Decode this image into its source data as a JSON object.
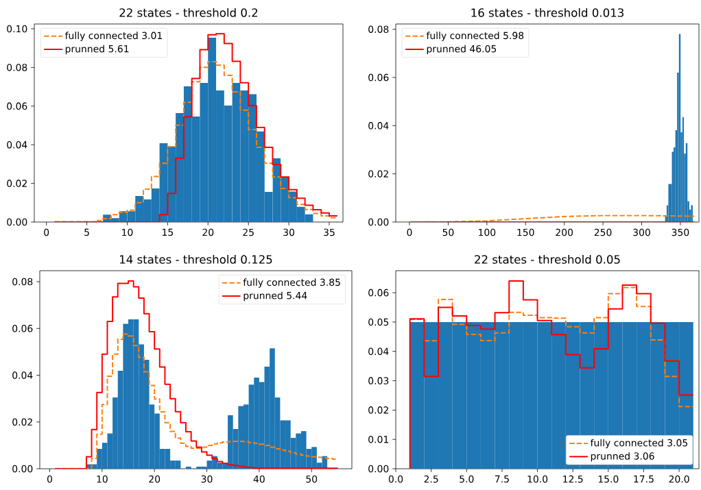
{
  "chart_data": [
    {
      "type": "histogram",
      "title": "22 states - threshold 0.2",
      "legend": "top left",
      "xlim": [
        -1.5,
        36.7
      ],
      "ylim": [
        0,
        0.1025
      ],
      "xticks": [
        0,
        5,
        10,
        15,
        20,
        25,
        30,
        35
      ],
      "yticks": [
        {
          "value": 0,
          "label": "0.00"
        },
        {
          "value": 0.02,
          "label": "0.02"
        },
        {
          "value": 0.04,
          "label": "0.04"
        },
        {
          "value": 0.06,
          "label": "0.06"
        },
        {
          "value": 0.08,
          "label": "0.08"
        },
        {
          "value": 0.1,
          "label": "0.10"
        }
      ],
      "series": [
        {
          "color": "#1f77b4",
          "bins": [
            7,
            8,
            9,
            10,
            11,
            12,
            13,
            14,
            15,
            16,
            17,
            18,
            19,
            20,
            21,
            22,
            23,
            24,
            25,
            26,
            27,
            28,
            29,
            30,
            31,
            32,
            33
          ],
          "values": [
            0.0038,
            0.002,
            0.0056,
            0.0056,
            0.0135,
            0.0117,
            0.0174,
            0.0408,
            0.0392,
            0.0564,
            0.0702,
            0.0546,
            0.072,
            0.0954,
            0.0681,
            0.0603,
            0.072,
            0.0681,
            0.0662,
            0.0469,
            0.0156,
            0.033,
            0.0233,
            0.0158,
            0.0079,
            0.004
          ]
        },
        {
          "type": "step",
          "name": "fully connected 3.01",
          "color": "#ff7f0e",
          "line_style": "dashed",
          "x": [
            1,
            6,
            7,
            8,
            9,
            10,
            11,
            12,
            13,
            14,
            15,
            16,
            17,
            18,
            19,
            20,
            21,
            22,
            23,
            24,
            25,
            26,
            27,
            28,
            29,
            30,
            31,
            32,
            33,
            34,
            35,
            36
          ],
          "values": [
            0.0002,
            0.0008,
            0.0018,
            0.0038,
            0.005,
            0.0061,
            0.01,
            0.017,
            0.0236,
            0.0304,
            0.039,
            0.0501,
            0.062,
            0.0726,
            0.0801,
            0.083,
            0.0812,
            0.0759,
            0.0674,
            0.0579,
            0.0479,
            0.0387,
            0.0304,
            0.0233,
            0.0174,
            0.0126,
            0.0091,
            0.0065,
            0.0044,
            0.0032,
            0.0022,
            0.0022
          ]
        },
        {
          "type": "step",
          "name": "prunned 5.61",
          "color": "#ff0000",
          "line_style": "solid",
          "x": [
            1,
            14,
            15,
            16,
            17,
            18,
            19,
            20,
            21,
            22,
            23,
            24,
            25,
            26,
            27,
            28,
            29,
            30,
            31,
            32,
            33,
            34,
            35,
            36
          ],
          "values": [
            0,
            0.0038,
            0.0148,
            0.0331,
            0.0544,
            0.0743,
            0.0892,
            0.0969,
            0.0974,
            0.0924,
            0.0832,
            0.0721,
            0.0602,
            0.0489,
            0.0387,
            0.0298,
            0.0233,
            0.0168,
            0.0123,
            0.0087,
            0.0064,
            0.0047,
            0.0032,
            0.0032
          ]
        }
      ]
    },
    {
      "type": "histogram",
      "title": "16 states - threshold 0.013",
      "legend": "top left",
      "xlim": [
        -17.7,
        374
      ],
      "ylim": [
        0,
        0.0822
      ],
      "xticks": [
        0,
        50,
        100,
        150,
        200,
        250,
        300,
        350
      ],
      "yticks": [
        {
          "value": 0,
          "label": "0.00"
        },
        {
          "value": 0.02,
          "label": "0.02"
        },
        {
          "value": 0.04,
          "label": "0.04"
        },
        {
          "value": 0.06,
          "label": "0.06"
        },
        {
          "value": 0.08,
          "label": "0.08"
        }
      ],
      "series": [
        {
          "color": "#1f77b4",
          "bins": [
            330,
            332.25,
            334.5,
            336.75,
            339,
            341.25,
            343.5,
            345.75,
            348,
            350.25,
            352.5,
            354.75,
            357,
            359.25,
            361.5,
            363.75,
            366
          ],
          "values": [
            0.0026,
            0.007,
            0.0158,
            0.0158,
            0.0292,
            0.031,
            0.0381,
            0.062,
            0.0781,
            0.0373,
            0.0435,
            0.0284,
            0.0327,
            0.0087,
            0.0052,
            0.007
          ]
        },
        {
          "type": "line",
          "name": "fully connected 5.98",
          "color": "#ff7f0e",
          "line_style": "dashed",
          "x": [
            1,
            50,
            100,
            150,
            200,
            250,
            300,
            350,
            368
          ],
          "values": [
            0,
            0.0001,
            0.0005,
            0.0014,
            0.0023,
            0.0027,
            0.0027,
            0.0025,
            0.0024
          ]
        },
        {
          "type": "line",
          "name": "prunned 46.05",
          "color": "#ff0000",
          "line_style": "solid",
          "x": [
            1,
            368
          ],
          "values": [
            0,
            0
          ]
        }
      ]
    },
    {
      "type": "histogram",
      "title": "14 states - threshold 0.125",
      "legend": "top right",
      "xlim": [
        -1.9,
        57.7
      ],
      "ylim": [
        0,
        0.0847
      ],
      "xticks": [
        0,
        10,
        20,
        30,
        40,
        50
      ],
      "yticks": [
        {
          "value": 0,
          "label": "0.00"
        },
        {
          "value": 0.02,
          "label": "0.02"
        },
        {
          "value": 0.04,
          "label": "0.04"
        },
        {
          "value": 0.06,
          "label": "0.06"
        },
        {
          "value": 0.08,
          "label": "0.08"
        }
      ],
      "series": [
        {
          "color": "#1f77b4",
          "bins": [
            7,
            8,
            9,
            10,
            11,
            12,
            13,
            14,
            15,
            16,
            17,
            18,
            19,
            20,
            21,
            22,
            23,
            24,
            25,
            26,
            27,
            28,
            29,
            30,
            31,
            32,
            33,
            34,
            35,
            36,
            37,
            38,
            39,
            40,
            41,
            42,
            43,
            44,
            45,
            46,
            47,
            48,
            49,
            50,
            51,
            52,
            53
          ],
          "values": [
            0.0019,
            0.0019,
            0.0085,
            0.0111,
            0.0151,
            0.0305,
            0.0419,
            0.062,
            0.0639,
            0.0639,
            0.0532,
            0.0466,
            0.0275,
            0.0236,
            0.0085,
            0.0085,
            0.0035,
            0.0035,
            0,
            0.0009,
            0,
            0.0009,
            0.0009,
            0.0035,
            0.0054,
            0.0026,
            0.0026,
            0.0229,
            0.017,
            0.0268,
            0.0275,
            0.036,
            0.039,
            0.0371,
            0.0437,
            0.0515,
            0.0305,
            0.0207,
            0.0207,
            0.0132,
            0.0151,
            0.0161,
            0.0085,
            0.0093,
            0.0026,
            0.0054
          ]
        },
        {
          "type": "step",
          "name": "fully connected 3.85",
          "color": "#ff7f0e",
          "line_style": "dashed",
          "x": [
            1,
            8,
            9,
            10,
            11,
            12,
            13,
            14,
            15,
            16,
            17,
            18,
            19,
            20,
            21,
            22,
            23,
            24,
            25,
            26,
            27,
            28,
            29,
            30,
            31,
            32,
            33,
            34,
            35,
            36,
            37,
            38,
            39,
            40,
            41,
            42,
            43,
            44,
            45,
            46,
            47,
            48,
            49,
            50,
            51,
            52,
            53,
            54,
            55
          ],
          "values": [
            0.0001,
            0.0045,
            0.0148,
            0.0275,
            0.0396,
            0.049,
            0.0554,
            0.0576,
            0.0568,
            0.0527,
            0.0476,
            0.0415,
            0.0356,
            0.0298,
            0.0243,
            0.0197,
            0.016,
            0.0131,
            0.0109,
            0.0095,
            0.0088,
            0.0088,
            0.0092,
            0.01,
            0.0106,
            0.0111,
            0.0114,
            0.0116,
            0.0117,
            0.0117,
            0.0116,
            0.0112,
            0.0109,
            0.0105,
            0.01,
            0.0092,
            0.0085,
            0.008,
            0.0075,
            0.0068,
            0.0063,
            0.0058,
            0.0054,
            0.0051,
            0.0049,
            0.0046,
            0.0044,
            0.0041,
            0.0041
          ]
        },
        {
          "type": "step",
          "name": "prunned 5.44",
          "color": "#ff0000",
          "line_style": "solid",
          "x": [
            1,
            7,
            8,
            9,
            10,
            11,
            12,
            13,
            14,
            15,
            16,
            17,
            18,
            19,
            20,
            21,
            22,
            23,
            24,
            25,
            26,
            27,
            28,
            29,
            30,
            31,
            32,
            33,
            34,
            35,
            36,
            37,
            38,
            39,
            55
          ],
          "values": [
            0,
            0.0051,
            0.0168,
            0.0326,
            0.049,
            0.063,
            0.0735,
            0.0793,
            0.0793,
            0.0803,
            0.0778,
            0.073,
            0.0663,
            0.0586,
            0.0512,
            0.0435,
            0.0361,
            0.03,
            0.0244,
            0.0197,
            0.0158,
            0.0119,
            0.0092,
            0.0072,
            0.0058,
            0.0043,
            0.0031,
            0.0023,
            0.0017,
            0.0014,
            0.001,
            0.0007,
            0.0005,
            0.0002,
            0.0002
          ]
        }
      ]
    },
    {
      "type": "histogram",
      "title": "22 states - threshold 0.05",
      "legend": "bottom right",
      "xlim": [
        0,
        21.4
      ],
      "ylim": [
        0,
        0.0675
      ],
      "xticks": [
        {
          "value": 0,
          "label": "0.0"
        },
        {
          "value": 2.5,
          "label": "2.5"
        },
        {
          "value": 5,
          "label": "5.0"
        },
        {
          "value": 7.5,
          "label": "7.5"
        },
        {
          "value": 10,
          "label": "10.0"
        },
        {
          "value": 12.5,
          "label": "12.5"
        },
        {
          "value": 15,
          "label": "15.0"
        },
        {
          "value": 17.5,
          "label": "17.5"
        },
        {
          "value": 20,
          "label": "20.0"
        }
      ],
      "yticks": [
        {
          "value": 0,
          "label": "0.00"
        },
        {
          "value": 0.01,
          "label": "0.01"
        },
        {
          "value": 0.02,
          "label": "0.02"
        },
        {
          "value": 0.03,
          "label": "0.03"
        },
        {
          "value": 0.04,
          "label": "0.04"
        },
        {
          "value": 0.05,
          "label": "0.05"
        },
        {
          "value": 0.06,
          "label": "0.06"
        }
      ],
      "series": [
        {
          "color": "#1f77b4",
          "bins": [
            1,
            2,
            3,
            4,
            5,
            6,
            7,
            8,
            9,
            10,
            11,
            12,
            13,
            14,
            15,
            16,
            17,
            18,
            19,
            20,
            21
          ],
          "values": [
            0.05,
            0.05,
            0.05,
            0.05,
            0.05,
            0.05,
            0.05,
            0.05,
            0.05,
            0.05,
            0.05,
            0.05,
            0.05,
            0.05,
            0.05,
            0.05,
            0.05,
            0.05,
            0.05,
            0.05
          ]
        },
        {
          "type": "step",
          "name": "fully connected 3.05",
          "color": "#ff7f0e",
          "line_style": "dashed",
          "x": [
            1,
            2,
            3,
            4,
            5,
            6,
            7,
            8,
            9,
            10,
            11,
            12,
            13,
            14,
            15,
            16,
            17,
            18,
            19,
            20,
            21
          ],
          "values": [
            0.0509,
            0.0436,
            0.0577,
            0.0492,
            0.0458,
            0.0437,
            0.0463,
            0.0533,
            0.0523,
            0.0515,
            0.0513,
            0.0484,
            0.0463,
            0.0515,
            0.0597,
            0.0618,
            0.0553,
            0.0439,
            0.0315,
            0.0212,
            0.0212
          ]
        },
        {
          "type": "step",
          "name": "prunned 3.06",
          "color": "#ff0000",
          "line_style": "solid",
          "x": [
            1,
            1,
            2,
            3,
            4,
            5,
            6,
            7,
            8,
            9,
            10,
            11,
            12,
            13,
            14,
            15,
            16,
            17,
            18,
            19,
            20,
            21
          ],
          "values": [
            0,
            0.0511,
            0.0315,
            0.055,
            0.0521,
            0.0488,
            0.0476,
            0.0532,
            0.064,
            0.0576,
            0.0505,
            0.0457,
            0.0389,
            0.0344,
            0.0409,
            0.0545,
            0.0626,
            0.0597,
            0.0496,
            0.0367,
            0.0251,
            0.0251
          ]
        }
      ]
    }
  ]
}
